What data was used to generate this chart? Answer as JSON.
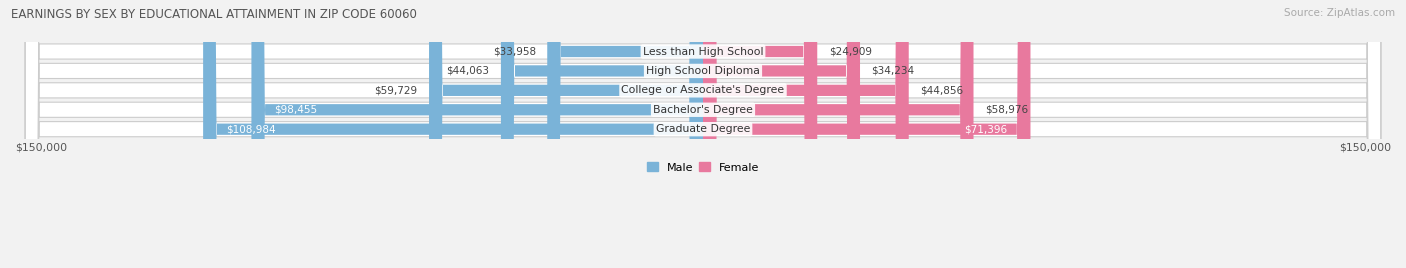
{
  "title": "EARNINGS BY SEX BY EDUCATIONAL ATTAINMENT IN ZIP CODE 60060",
  "source": "Source: ZipAtlas.com",
  "categories": [
    "Less than High School",
    "High School Diploma",
    "College or Associate's Degree",
    "Bachelor's Degree",
    "Graduate Degree"
  ],
  "male_values": [
    33958,
    44063,
    59729,
    98455,
    108984
  ],
  "female_values": [
    24909,
    34234,
    44856,
    58976,
    71396
  ],
  "male_color": "#7ab3d8",
  "female_color": "#e8799e",
  "max_value": 150000,
  "bar_height": 0.58,
  "background_color": "#f2f2f2",
  "row_bg_color": "#ffffff",
  "row_edge_color": "#cccccc",
  "xlabel_left": "$150,000",
  "xlabel_right": "$150,000",
  "male_label_inside_threshold": 80000,
  "female_label_inside_threshold": 60000
}
